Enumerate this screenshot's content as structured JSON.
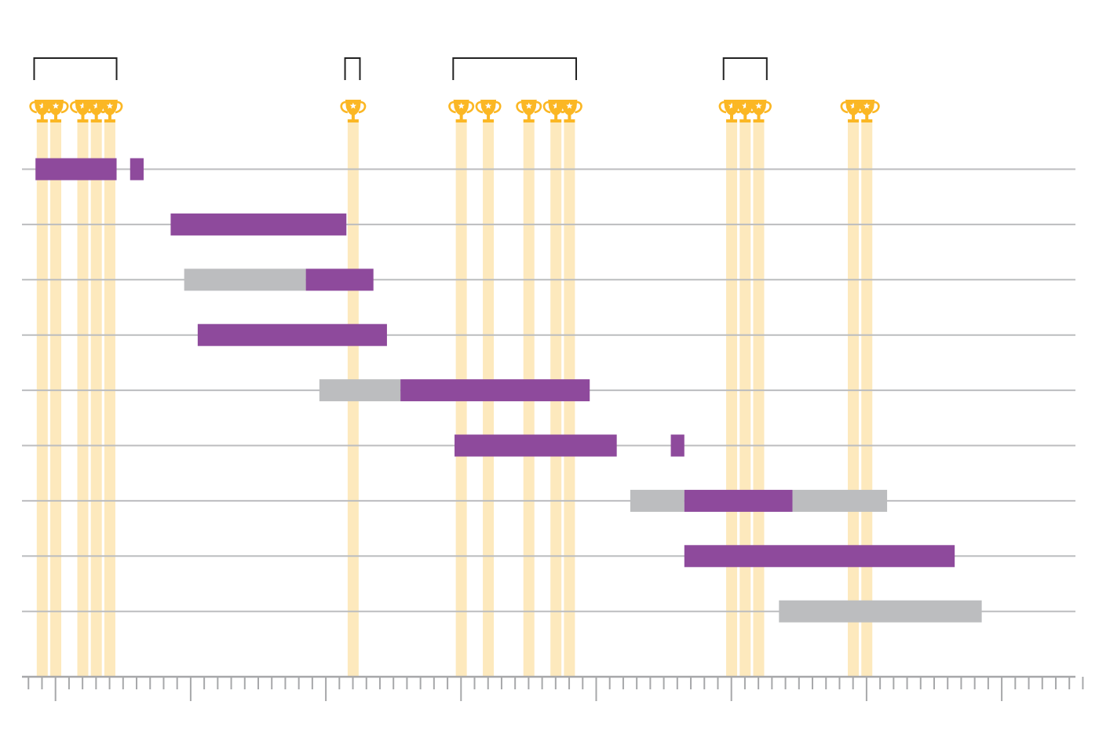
{
  "colors": {
    "background": "#ffffff",
    "active_bar": "#8e4a9c",
    "inactive_bar": "#bcbdbf",
    "trophy": "#fbb724",
    "trophy_star": "#ffffff",
    "trophy_band": "#fde9bd",
    "gridline": "#bcbdbf",
    "axis": "#a7a8aa",
    "bracket": "#222222"
  },
  "chart_data": {
    "type": "gantt",
    "title": "",
    "xlabel": "",
    "ylabel": "",
    "x_axis": {
      "min": 0,
      "max": 78,
      "minor_tick_every": 1,
      "major_tick_every": 10,
      "tick_labels": []
    },
    "grid": "horizontal",
    "legend": "none",
    "rows": [
      {
        "segments": [
          {
            "start": 0.5,
            "end": 6.5,
            "status": "active"
          },
          {
            "start": 7.5,
            "end": 8.5,
            "status": "active"
          }
        ]
      },
      {
        "segments": [
          {
            "start": 10.5,
            "end": 23.5,
            "status": "active"
          }
        ]
      },
      {
        "segments": [
          {
            "start": 11.5,
            "end": 20.5,
            "status": "inactive"
          },
          {
            "start": 20.5,
            "end": 25.5,
            "status": "active"
          }
        ]
      },
      {
        "segments": [
          {
            "start": 12.5,
            "end": 26.5,
            "status": "active"
          }
        ]
      },
      {
        "segments": [
          {
            "start": 21.5,
            "end": 27.5,
            "status": "inactive"
          },
          {
            "start": 27.5,
            "end": 41.5,
            "status": "active"
          }
        ]
      },
      {
        "segments": [
          {
            "start": 31.5,
            "end": 43.5,
            "status": "active"
          },
          {
            "start": 47.5,
            "end": 48.5,
            "status": "active"
          }
        ]
      },
      {
        "segments": [
          {
            "start": 44.5,
            "end": 48.5,
            "status": "inactive"
          },
          {
            "start": 48.5,
            "end": 56.5,
            "status": "active"
          },
          {
            "start": 56.5,
            "end": 63.5,
            "status": "inactive"
          }
        ]
      },
      {
        "segments": [
          {
            "start": 48.5,
            "end": 68.5,
            "status": "active"
          }
        ]
      },
      {
        "segments": [
          {
            "start": 55.5,
            "end": 70.5,
            "status": "inactive"
          }
        ]
      }
    ],
    "trophies": [
      {
        "x": 1,
        "star": true
      },
      {
        "x": 2,
        "star": true
      },
      {
        "x": 4,
        "star": true
      },
      {
        "x": 5,
        "star": true
      },
      {
        "x": 6,
        "star": true
      },
      {
        "x": 24,
        "star": true
      },
      {
        "x": 32,
        "star": true
      },
      {
        "x": 34,
        "star": true
      },
      {
        "x": 37,
        "star": true
      },
      {
        "x": 39,
        "star": true
      },
      {
        "x": 40,
        "star": true
      },
      {
        "x": 52,
        "star": true
      },
      {
        "x": 53,
        "star": true
      },
      {
        "x": 54,
        "star": true
      },
      {
        "x": 61,
        "star": true
      },
      {
        "x": 62,
        "star": true
      }
    ],
    "brackets": [
      {
        "start": 0.4,
        "end": 6.5
      },
      {
        "start": 23.4,
        "end": 24.5
      },
      {
        "start": 31.4,
        "end": 40.5
      },
      {
        "start": 51.4,
        "end": 54.6
      }
    ]
  }
}
